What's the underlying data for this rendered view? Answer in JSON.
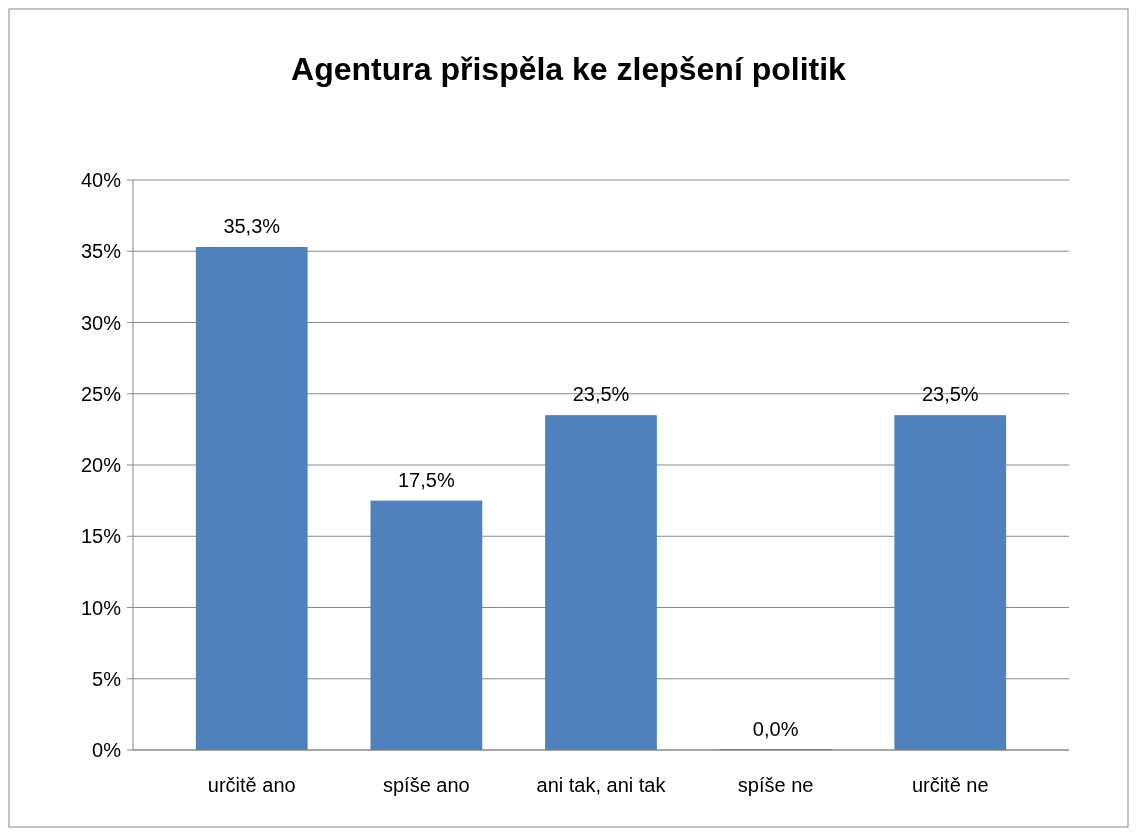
{
  "chart_data": {
    "type": "bar",
    "title": "Agentura přispěla ke zlepšení politik",
    "categories": [
      "určitě ano",
      "spíše ano",
      "ani tak, ani tak",
      "spíše ne",
      "určitě ne"
    ],
    "values": [
      35.3,
      17.5,
      23.5,
      0.0,
      23.5
    ],
    "value_labels": [
      "35,3%",
      "17,5%",
      "23,5%",
      "0,0%",
      "23,5%"
    ],
    "color": "#4f81bd",
    "ylim": [
      0,
      40
    ],
    "yticks": [
      {
        "value": 0,
        "label": "0%"
      },
      {
        "value": 5,
        "label": "5%"
      },
      {
        "value": 10,
        "label": "10%"
      },
      {
        "value": 15,
        "label": "15%"
      },
      {
        "value": 20,
        "label": "20%"
      },
      {
        "value": 25,
        "label": "25%"
      },
      {
        "value": 30,
        "label": "30%"
      },
      {
        "value": 35,
        "label": "35%"
      },
      {
        "value": 40,
        "label": "40%"
      }
    ],
    "grid": true
  }
}
